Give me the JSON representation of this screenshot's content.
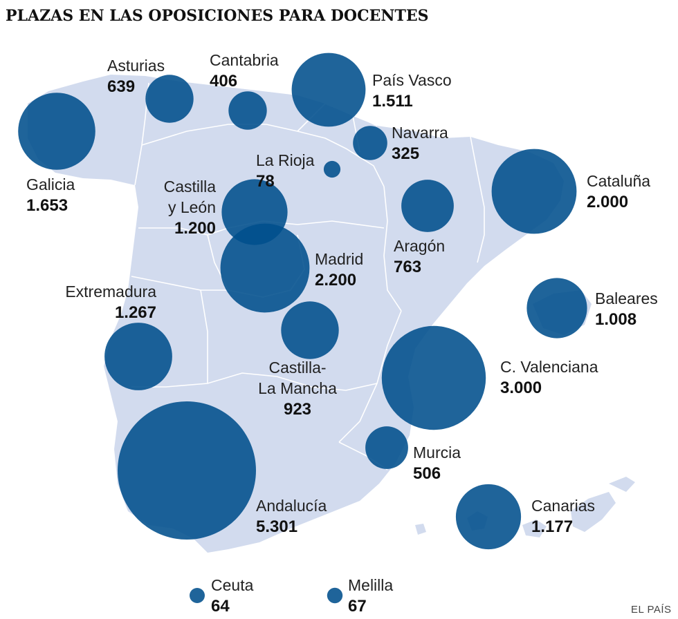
{
  "title": "PLAZAS EN LAS OPOSICIONES PARA DOCENTES",
  "source": "EL PAÍS",
  "colors": {
    "land": "#d2dbee",
    "bubble": "#004e8c",
    "text": "#222222"
  },
  "regions": [
    {
      "id": "asturias",
      "name": [
        "Asturias"
      ],
      "value": 639,
      "value_label": "639"
    },
    {
      "id": "cantabria",
      "name": [
        "Cantabria"
      ],
      "value": 406,
      "value_label": "406"
    },
    {
      "id": "pais-vasco",
      "name": [
        "País Vasco"
      ],
      "value": 1511,
      "value_label": "1.511"
    },
    {
      "id": "navarra",
      "name": [
        "Navarra"
      ],
      "value": 325,
      "value_label": "325"
    },
    {
      "id": "galicia",
      "name": [
        "Galicia"
      ],
      "value": 1653,
      "value_label": "1.653"
    },
    {
      "id": "la-rioja",
      "name": [
        "La Rioja"
      ],
      "value": 78,
      "value_label": "78"
    },
    {
      "id": "cataluna",
      "name": [
        "Cataluña"
      ],
      "value": 2000,
      "value_label": "2.000"
    },
    {
      "id": "castilla-y-leon",
      "name": [
        "Castilla",
        "y León"
      ],
      "value": 1200,
      "value_label": "1.200"
    },
    {
      "id": "aragon",
      "name": [
        "Aragón"
      ],
      "value": 763,
      "value_label": "763"
    },
    {
      "id": "madrid",
      "name": [
        "Madrid"
      ],
      "value": 2200,
      "value_label": "2.200"
    },
    {
      "id": "extremadura",
      "name": [
        "Extremadura"
      ],
      "value": 1267,
      "value_label": "1.267"
    },
    {
      "id": "baleares",
      "name": [
        "Baleares"
      ],
      "value": 1008,
      "value_label": "1.008"
    },
    {
      "id": "castilla-la-mancha",
      "name": [
        "Castilla-",
        "La Mancha"
      ],
      "value": 923,
      "value_label": "923"
    },
    {
      "id": "c-valenciana",
      "name": [
        "C. Valenciana"
      ],
      "value": 3000,
      "value_label": "3.000"
    },
    {
      "id": "murcia",
      "name": [
        "Murcia"
      ],
      "value": 506,
      "value_label": "506"
    },
    {
      "id": "andalucia",
      "name": [
        "Andalucía"
      ],
      "value": 5301,
      "value_label": "5.301"
    },
    {
      "id": "canarias",
      "name": [
        "Canarias"
      ],
      "value": 1177,
      "value_label": "1.177"
    },
    {
      "id": "ceuta",
      "name": [
        "Ceuta"
      ],
      "value": 64,
      "value_label": "64"
    },
    {
      "id": "melilla",
      "name": [
        "Melilla"
      ],
      "value": 67,
      "value_label": "67"
    }
  ]
}
